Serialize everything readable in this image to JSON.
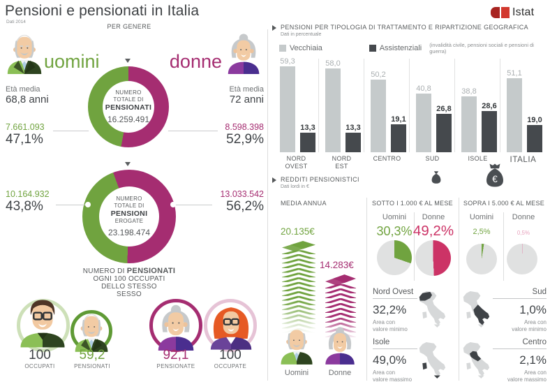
{
  "meta": {
    "title": "Pensioni e pensionati in Italia",
    "subtitle": "Dati 2014",
    "brand": "Istat"
  },
  "colors": {
    "green": "#70a33f",
    "light_green": "#8bbf56",
    "magenta": "#a52d71",
    "rose": "#cc3366",
    "pink": "#e8a2bd",
    "bar_light": "#c5cacb",
    "bar_dark": "#45494d",
    "pie_base": "#e0e1e1",
    "istat_red": "#d2382e",
    "text_dark": "#3f4347",
    "text_gray": "#6e7173"
  },
  "per_genere": {
    "section_label": "PER GENERE",
    "uomini_label": "uomini",
    "donne_label": "donne",
    "eta_media_label": "Età media",
    "uomini_eta": "68,8 anni",
    "donne_eta": "72 anni",
    "donut_pensionati": {
      "line1": "NUMERO",
      "line2": "TOTALE DI",
      "line3": "PENSIONATI",
      "total": "16.259.491",
      "uomini_value": "7.661.093",
      "uomini_pct": "47,1%",
      "donne_value": "8.598.398",
      "donne_pct": "52,9%"
    },
    "donut_pensioni": {
      "line1": "NUMERO",
      "line2": "TOTALE DI",
      "line3": "PENSIONI",
      "line4": "EROGATE",
      "total": "23.198.474",
      "uomini_value": "10.164.932",
      "uomini_pct": "43,8%",
      "donne_value": "13.033.542",
      "donne_pct": "56,2%"
    },
    "ratio_caption": {
      "pre": "NUMERO DI",
      "bold": "PENSIONATI",
      "line2": "OGNI 100 OCCUPATI",
      "line3": "DELLO STESSO",
      "line4": "SESSO"
    },
    "ratio_items": [
      {
        "value": "100",
        "label": "OCCUPATI"
      },
      {
        "value": "59,2",
        "label": "PENSIONATI"
      },
      {
        "value": "92,1",
        "label": "PENSIONATE"
      },
      {
        "value": "100",
        "label": "OCCUPATE"
      }
    ]
  },
  "tipologia": {
    "title": "PENSIONI PER TIPOLOGIA DI TRATTAMENTO E RIPARTIZIONE GEOGRAFICA",
    "subtitle": "Dati in percentuale",
    "legend_vecchiaia": "Vecchiaia",
    "legend_assistenziali": "Assistenziali",
    "legend_note": "(invalidità civile, pensioni sociali e pensioni di guerra)",
    "categories": [
      "NORD OVEST",
      "NORD EST",
      "CENTRO",
      "SUD",
      "ISOLE",
      "ITALIA"
    ],
    "vecchiaia_display": [
      "59,3",
      "58,0",
      "50,2",
      "40,8",
      "38,8",
      "51,1"
    ],
    "assistenziali_display": [
      "13,3",
      "13,3",
      "19,1",
      "26,8",
      "28,6",
      "19,0"
    ]
  },
  "redditi": {
    "title": "REDDITI PENSIONISTICI",
    "subtitle": "Dati lordi in €",
    "media_annua": {
      "label": "MEDIA ANNUA",
      "uomini_value": "20.135€",
      "donne_value": "14.283€",
      "uomini_label": "Uomini",
      "donne_label": "Donne"
    },
    "sotto": {
      "label": "SOTTO I 1.000 € AL MESE",
      "uomini_label": "Uomini",
      "donne_label": "Donne",
      "uomini_pct": "30,3%",
      "donne_pct": "49,2%",
      "min_region": "Nord Ovest",
      "min_pct": "32,2%",
      "min_note1": "Area con",
      "min_note2": "valore minimo",
      "max_region": "Isole",
      "max_pct": "49,0%",
      "max_note1": "Area con",
      "max_note2": "valore massimo"
    },
    "sopra": {
      "label": "SOPRA I 5.000 € AL MESE",
      "uomini_label": "Uomini",
      "donne_label": "Donne",
      "uomini_pct": "2,5%",
      "donne_pct": "0,5%",
      "min_region": "Sud",
      "min_pct": "1,0%",
      "min_note1": "Area con",
      "min_note2": "valore minimo",
      "max_region": "Centro",
      "max_pct": "2,1%",
      "max_note1": "Area con",
      "max_note2": "valore massimo"
    }
  },
  "chart_data": [
    {
      "type": "bar",
      "title": "Pensioni per tipologia di trattamento e ripartizione geografica",
      "unit": "%",
      "ylim": [
        0,
        65
      ],
      "grid": false,
      "legend_position": "top",
      "categories": [
        "NORD OVEST",
        "NORD EST",
        "CENTRO",
        "SUD",
        "ISOLE",
        "ITALIA"
      ],
      "series": [
        {
          "name": "Vecchiaia",
          "values": [
            59.3,
            58.0,
            50.2,
            40.8,
            38.8,
            51.1
          ]
        },
        {
          "name": "Assistenziali",
          "values": [
            13.3,
            13.3,
            19.1,
            26.8,
            28.6,
            19.0
          ]
        }
      ],
      "legend_note": "invalidità civile, pensioni sociali e pensioni di guerra"
    },
    {
      "type": "donut",
      "title": "Numero totale di pensionati",
      "total": 16259491,
      "slices": [
        {
          "label": "uomini",
          "value": 7661093,
          "pct": 47.1
        },
        {
          "label": "donne",
          "value": 8598398,
          "pct": 52.9
        }
      ]
    },
    {
      "type": "donut",
      "title": "Numero totale di pensioni erogate",
      "total": 23198474,
      "slices": [
        {
          "label": "uomini",
          "value": 10164932,
          "pct": 43.8
        },
        {
          "label": "donne",
          "value": 13033542,
          "pct": 56.2
        }
      ]
    },
    {
      "type": "pie",
      "title": "Sotto i 1.000 € al mese",
      "slices": [
        {
          "label": "Uomini",
          "pct": 30.3
        },
        {
          "label": "Donne",
          "pct": 49.2
        }
      ]
    },
    {
      "type": "pie",
      "title": "Sopra i 5.000 € al mese",
      "slices": [
        {
          "label": "Uomini",
          "pct": 2.5
        },
        {
          "label": "Donne",
          "pct": 0.5
        }
      ]
    },
    {
      "type": "bar",
      "title": "Media annua redditi pensionistici",
      "unit": "€ lordi",
      "categories": [
        "Uomini",
        "Donne"
      ],
      "values": [
        20135,
        14283
      ]
    },
    {
      "type": "table",
      "title": "Numero di pensionati ogni 100 occupati dello stesso sesso",
      "categories": [
        "OCCUPATI",
        "PENSIONATI",
        "PENSIONATE",
        "OCCUPATE"
      ],
      "values": [
        100,
        59.2,
        92.1,
        100
      ]
    },
    {
      "type": "table",
      "title": "Sotto i 1.000 € al mese — aree",
      "categories": [
        "Nord Ovest (valore minimo)",
        "Isole (valore massimo)"
      ],
      "values": [
        32.2,
        49.0
      ]
    },
    {
      "type": "table",
      "title": "Sopra i 5.000 € al mese — aree",
      "categories": [
        "Sud (valore minimo)",
        "Centro (valore massimo)"
      ],
      "values": [
        1.0,
        2.1
      ]
    }
  ]
}
